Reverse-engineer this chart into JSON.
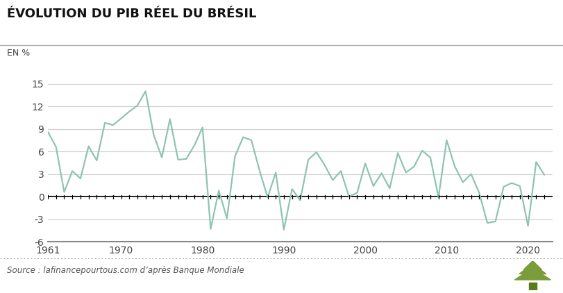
{
  "title": "ÉVOLUTION DU PIB RÉEL DU BRÉSIL",
  "ylabel": "EN %",
  "source": "Source : lafinancepourtous.com d’après Banque Mondiale",
  "line_color": "#8ec4b0",
  "background_color": "#ffffff",
  "ylim": [
    -6,
    16
  ],
  "yticks": [
    -6,
    -3,
    0,
    3,
    6,
    9,
    12,
    15
  ],
  "xlim": [
    1961,
    2023
  ],
  "xticks": [
    1961,
    1970,
    1980,
    1990,
    2000,
    2010,
    2020
  ],
  "xticklabels": [
    "1961",
    "1970",
    "1980",
    "1990",
    "2000",
    "2010",
    "2020"
  ],
  "years": [
    1961,
    1962,
    1963,
    1964,
    1965,
    1966,
    1967,
    1968,
    1969,
    1970,
    1971,
    1972,
    1973,
    1974,
    1975,
    1976,
    1977,
    1978,
    1979,
    1980,
    1981,
    1982,
    1983,
    1984,
    1985,
    1986,
    1987,
    1988,
    1989,
    1990,
    1991,
    1992,
    1993,
    1994,
    1995,
    1996,
    1997,
    1998,
    1999,
    2000,
    2001,
    2002,
    2003,
    2004,
    2005,
    2006,
    2007,
    2008,
    2009,
    2010,
    2011,
    2012,
    2013,
    2014,
    2015,
    2016,
    2017,
    2018,
    2019,
    2020,
    2021,
    2022
  ],
  "values": [
    8.6,
    6.6,
    0.6,
    3.4,
    2.4,
    6.7,
    4.8,
    9.8,
    9.5,
    10.4,
    11.3,
    12.1,
    14.0,
    8.2,
    5.2,
    10.3,
    4.9,
    5.0,
    6.8,
    9.2,
    -4.3,
    0.8,
    -2.9,
    5.4,
    7.9,
    7.5,
    3.5,
    -0.1,
    3.2,
    -4.4,
    1.0,
    -0.5,
    4.9,
    5.9,
    4.2,
    2.2,
    3.4,
    0.0,
    0.5,
    4.4,
    1.4,
    3.1,
    1.1,
    5.8,
    3.2,
    4.0,
    6.1,
    5.2,
    -0.1,
    7.5,
    4.0,
    1.9,
    3.0,
    0.5,
    -3.5,
    -3.3,
    1.3,
    1.8,
    1.4,
    -3.9,
    4.6,
    2.9
  ],
  "title_fontsize": 13,
  "axis_fontsize": 10,
  "source_fontsize": 8.5,
  "grid_color": "#d0d0d0",
  "zero_line_color": "#000000",
  "spine_color": "#888888",
  "tick_color": "#000000",
  "label_color": "#444444",
  "tree_color": "#7a9c3a",
  "separator_color": "#aaaaaa"
}
